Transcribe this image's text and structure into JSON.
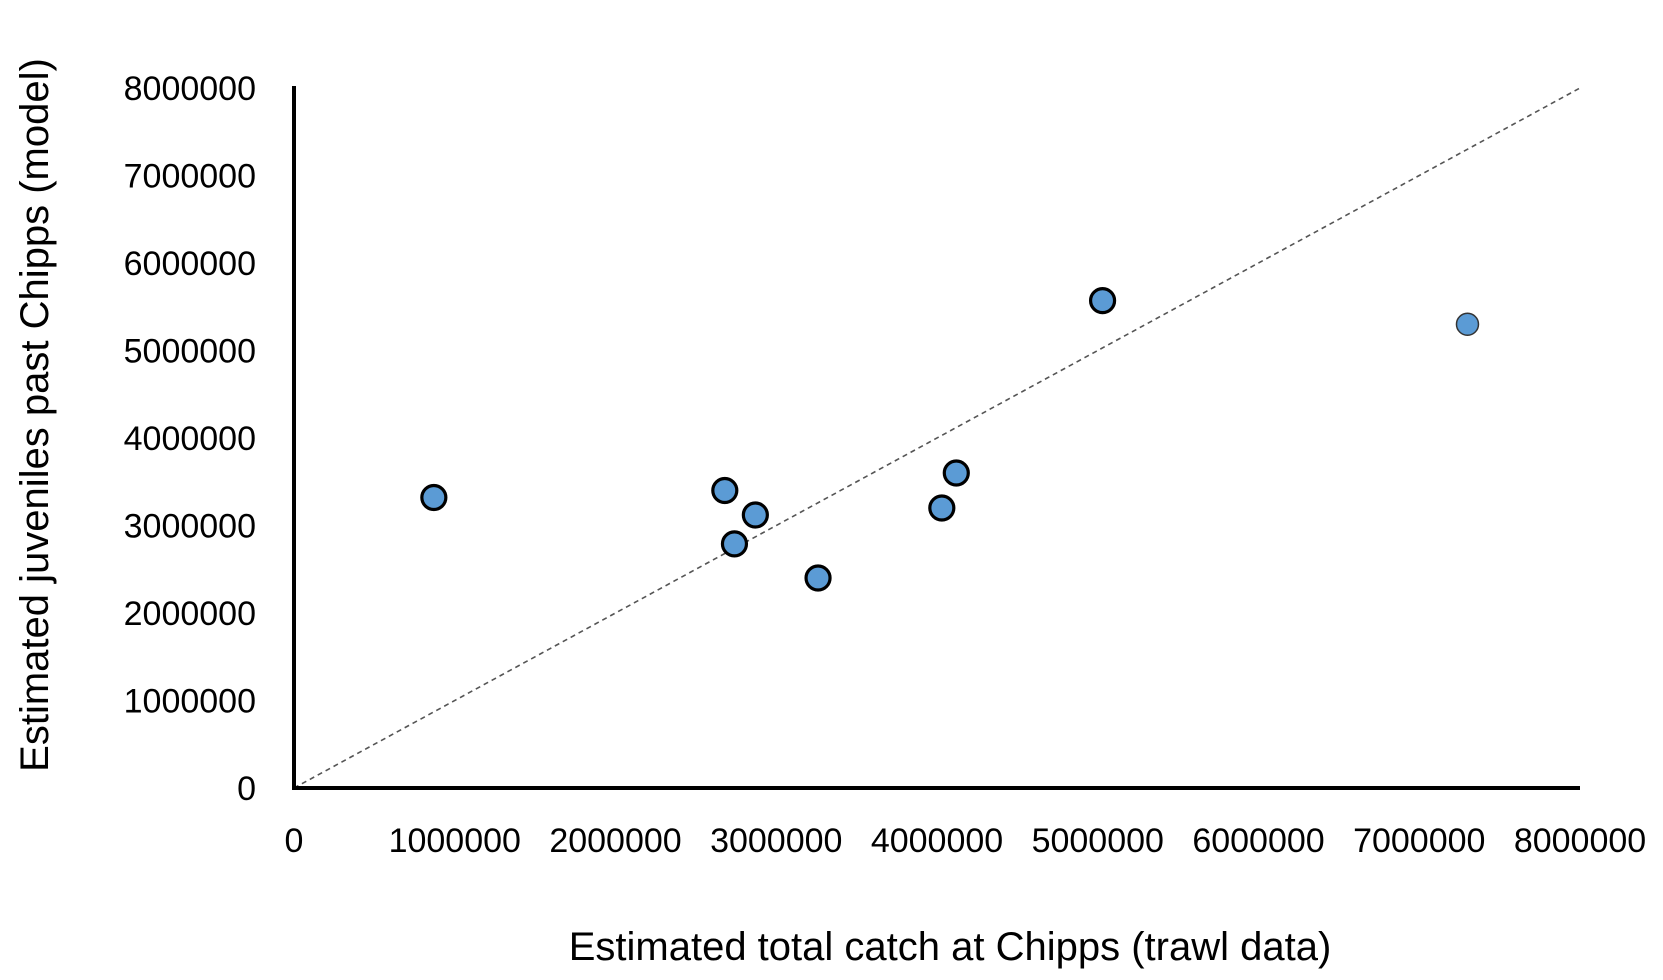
{
  "chart_data": {
    "type": "scatter",
    "title": "",
    "xlabel": "Estimated total catch at Chipps (trawl data)",
    "ylabel": "Estimated juveniles past Chipps (model)",
    "xlim": [
      0,
      8000000
    ],
    "ylim": [
      0,
      8000000
    ],
    "x_ticks": [
      "0",
      "1000000",
      "2000000",
      "3000000",
      "4000000",
      "5000000",
      "6000000",
      "7000000",
      "8000000"
    ],
    "y_ticks": [
      "0",
      "1000000",
      "2000000",
      "3000000",
      "4000000",
      "5000000",
      "6000000",
      "7000000",
      "8000000"
    ],
    "grid": false,
    "legend": "none",
    "reference_line": {
      "style": "dashed",
      "x": [
        0,
        8000000
      ],
      "y": [
        0,
        8000000
      ]
    },
    "marker_color": "#5b9bd5",
    "series": [
      {
        "x": [
          870000,
          2680000,
          2740000,
          2870000,
          3260000,
          4030000,
          4120000,
          5030000,
          7300000
        ],
        "y": [
          3320000,
          3400000,
          2790000,
          3120000,
          2400000,
          3200000,
          3600000,
          5570000,
          5300000
        ]
      }
    ]
  }
}
